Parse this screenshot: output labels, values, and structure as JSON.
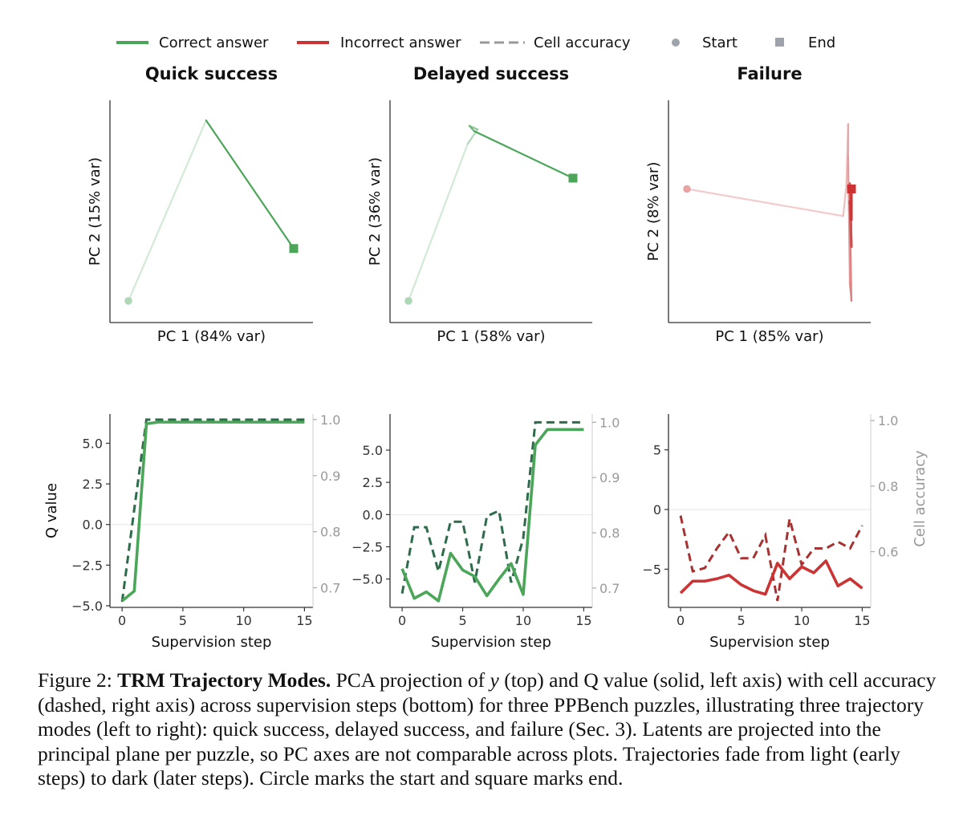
{
  "legend": [
    {
      "label": "Correct answer",
      "kind": "line",
      "color": "#4ca65a"
    },
    {
      "label": "Incorrect answer",
      "kind": "line",
      "color": "#cc3333"
    },
    {
      "label": "Cell accuracy",
      "kind": "dash",
      "color": "#999999"
    },
    {
      "label": "Start",
      "kind": "circle",
      "color": "#9ea3ab"
    },
    {
      "label": "End",
      "kind": "square",
      "color": "#9ea3ab"
    }
  ],
  "chart_data": [
    {
      "type": "line",
      "panel": "pca",
      "title": "Quick success",
      "xlabel": "PC 1 (84% var)",
      "ylabel": "PC 2 (15% var)",
      "color": "#4ca65a",
      "x": [
        0.0,
        0.47,
        1.0
      ],
      "y": [
        0.0,
        1.0,
        0.29
      ]
    },
    {
      "type": "line",
      "panel": "pca",
      "title": "Delayed success",
      "xlabel": "PC 1 (58% var)",
      "ylabel": "PC 2 (36% var)",
      "color": "#4ca65a",
      "x": [
        0.0,
        0.36,
        0.42,
        0.37,
        0.4,
        1.0
      ],
      "y": [
        0.0,
        0.87,
        0.95,
        0.97,
        0.94,
        0.68
      ]
    },
    {
      "type": "line",
      "panel": "pca",
      "title": "Failure",
      "xlabel": "PC 1 (85% var)",
      "ylabel": "PC 2 (8% var)",
      "color": "#cc3333",
      "x": [
        0.0,
        0.95,
        0.97,
        0.98,
        0.98,
        0.99,
        1.0,
        0.99,
        1.0,
        0.99,
        1.0,
        0.99,
        1.0,
        1.0
      ],
      "y": [
        0.62,
        0.47,
        0.65,
        0.98,
        0.8,
        0.1,
        0.0,
        0.5,
        0.4,
        0.65,
        0.3,
        0.55,
        0.45,
        0.62
      ]
    },
    {
      "type": "line",
      "panel": "q",
      "xlabel": "Supervision step",
      "ylabel": "Q value",
      "y2label": "",
      "color": "#4ca65a",
      "xlim": [
        -1,
        15.7
      ],
      "xticks": [
        0,
        5,
        10,
        15
      ],
      "ylim": [
        -5.1,
        6.8
      ],
      "yticks": [
        -5.0,
        -2.5,
        0.0,
        2.5,
        5.0
      ],
      "y2lim": [
        0.665,
        1.01
      ],
      "y2ticks": [
        0.7,
        0.8,
        0.9,
        1.0
      ],
      "x": [
        0,
        1,
        2,
        3,
        4,
        5,
        6,
        7,
        8,
        9,
        10,
        11,
        12,
        13,
        14,
        15
      ],
      "q": [
        -4.7,
        -4.1,
        6.2,
        6.3,
        6.3,
        6.3,
        6.3,
        6.3,
        6.3,
        6.3,
        6.3,
        6.3,
        6.3,
        6.3,
        6.3,
        6.3
      ],
      "acc": [
        0.675,
        0.84,
        1.0,
        1.0,
        1.0,
        1.0,
        1.0,
        1.0,
        1.0,
        1.0,
        1.0,
        1.0,
        1.0,
        1.0,
        1.0,
        1.0
      ]
    },
    {
      "type": "line",
      "panel": "q",
      "xlabel": "Supervision step",
      "ylabel": "",
      "y2label": "",
      "color": "#4ca65a",
      "xlim": [
        -1,
        15.7
      ],
      "xticks": [
        0,
        5,
        10,
        15
      ],
      "ylim": [
        -7.2,
        7.8
      ],
      "yticks": [
        -5.0,
        -2.5,
        0.0,
        2.5,
        5.0
      ],
      "y2lim": [
        0.665,
        1.015
      ],
      "y2ticks": [
        0.7,
        0.8,
        0.9,
        1.0
      ],
      "x": [
        0,
        1,
        2,
        3,
        4,
        5,
        6,
        7,
        8,
        9,
        10,
        11,
        12,
        13,
        14,
        15
      ],
      "q": [
        -4.2,
        -6.5,
        -6.0,
        -6.7,
        -3.0,
        -4.3,
        -4.8,
        -6.3,
        -5.0,
        -3.8,
        -6.2,
        5.4,
        6.6,
        6.6,
        6.6,
        6.6
      ],
      "acc": [
        0.69,
        0.81,
        0.81,
        0.73,
        0.82,
        0.82,
        0.71,
        0.83,
        0.84,
        0.71,
        0.79,
        1.0,
        1.0,
        1.0,
        1.0,
        1.0
      ]
    },
    {
      "type": "line",
      "panel": "q",
      "xlabel": "Supervision step",
      "ylabel": "",
      "y2label": "Cell accuracy",
      "color": "#cc3333",
      "xlim": [
        -1,
        15.7
      ],
      "xticks": [
        0,
        5,
        10,
        15
      ],
      "ylim": [
        -8.2,
        8.0
      ],
      "yticks": [
        -5,
        0,
        5
      ],
      "y2lim": [
        0.43,
        1.02
      ],
      "y2ticks": [
        0.6,
        0.8,
        1.0
      ],
      "x": [
        0,
        1,
        2,
        3,
        4,
        5,
        6,
        7,
        8,
        9,
        10,
        11,
        12,
        13,
        14,
        15
      ],
      "q": [
        -7.0,
        -6.0,
        -6.0,
        -5.8,
        -5.5,
        -6.3,
        -6.8,
        -7.1,
        -4.5,
        -5.8,
        -4.8,
        -5.3,
        -4.3,
        -6.4,
        -5.8,
        -6.6
      ],
      "acc": [
        0.71,
        0.54,
        0.55,
        0.61,
        0.66,
        0.58,
        0.58,
        0.65,
        0.45,
        0.7,
        0.56,
        0.61,
        0.61,
        0.63,
        0.61,
        0.68
      ]
    }
  ],
  "caption": {
    "prefix": "Figure 2: ",
    "bold": "TRM Trajectory Modes.",
    "part1": " PCA projection of ",
    "var": "y",
    "part2": " (top) and Q value (solid, left axis) with cell accuracy (dashed, right axis) across supervision steps (bottom) for three PPBench puzzles, illustrating three trajectory modes (left to right): quick success, delayed success, and failure (Sec. 3). Latents are projected into the principal plane per puzzle, so PC axes are not comparable across plots. Trajectories fade from light (early steps) to dark (later steps). Circle marks the start and square marks end."
  }
}
